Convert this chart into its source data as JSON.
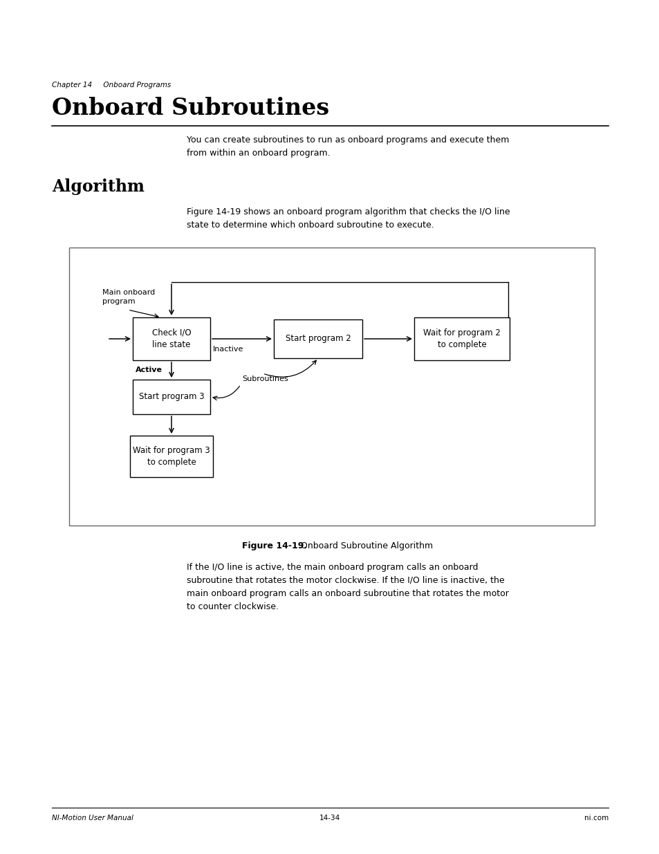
{
  "page_bg": "#ffffff",
  "header_text": "Chapter 14     Onboard Programs",
  "title": "Onboard Subroutines",
  "section": "Algorithm",
  "intro_text": "You can create subroutines to run as onboard programs and execute them\nfrom within an onboard program.",
  "algo_intro": "Figure 14-19 shows an onboard program algorithm that checks the I/O line\nstate to determine which onboard subroutine to execute.",
  "figure_caption_bold": "Figure 14-19.",
  "figure_caption_normal": "  Onboard Subroutine Algorithm",
  "body_text": "If the I/O line is active, the main onboard program calls an onboard\nsubroutine that rotates the motor clockwise. If the I/O line is inactive, the\nmain onboard program calls an onboard subroutine that rotates the motor\nto counter clockwise.",
  "footer_left": "NI-Motion User Manual",
  "footer_center": "14-34",
  "footer_right": "ni.com"
}
